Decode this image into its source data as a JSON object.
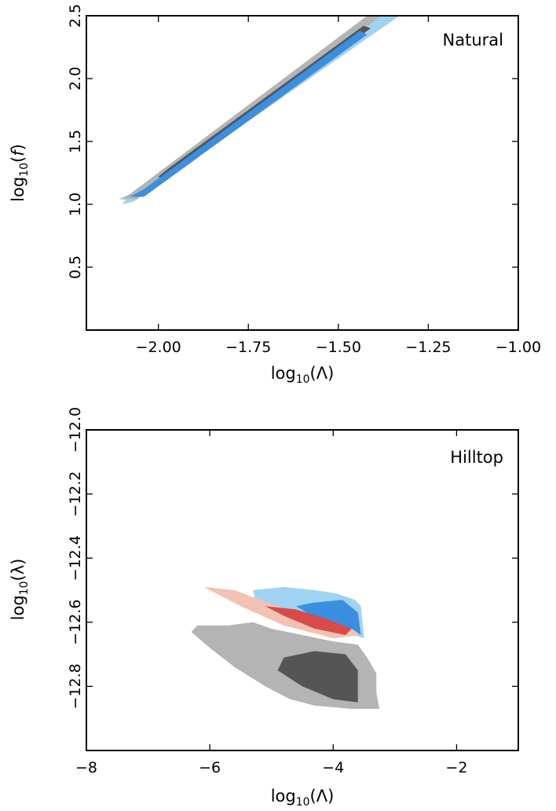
{
  "colors": {
    "gray_outer": "#b4b4b4",
    "gray_inner": "#555555",
    "blue_outer": "#9fd3f2",
    "blue_inner": "#3a8fe0",
    "red_outer": "#f2c2b2",
    "red_inner": "#d94a4a"
  },
  "chart_data": [
    {
      "type": "contour",
      "title": "Natural",
      "xlabel": "log10(Λ)",
      "ylabel": "log10(f)",
      "xlim": [
        -2.2,
        -1.0
      ],
      "ylim": [
        0.0,
        2.5
      ],
      "xticks": [
        -2.0,
        -1.75,
        -1.5,
        -1.25,
        -1.0
      ],
      "xtick_labels": [
        "−2.00",
        "−1.75",
        "−1.50",
        "−1.25",
        "−1.00"
      ],
      "yticks": [
        0.5,
        1.0,
        1.5,
        2.0,
        2.5
      ],
      "ytick_labels": [
        "0.5",
        "1.0",
        "1.5",
        "2.0",
        "2.5"
      ],
      "regions": [
        {
          "color": "blue_outer",
          "points": [
            [
              -2.1,
              1.0
            ],
            [
              -2.09,
              1.04
            ],
            [
              -1.41,
              2.5
            ],
            [
              -1.33,
              2.5
            ],
            [
              -2.07,
              1.02
            ]
          ]
        },
        {
          "color": "gray_outer",
          "points": [
            [
              -2.11,
              1.04
            ],
            [
              -2.08,
              1.08
            ],
            [
              -1.42,
              2.5
            ],
            [
              -1.38,
              2.5
            ],
            [
              -2.06,
              1.04
            ]
          ]
        },
        {
          "color": "gray_inner",
          "points": [
            [
              -2.0,
              1.22
            ],
            [
              -1.97,
              1.29
            ],
            [
              -1.43,
              2.42
            ],
            [
              -1.41,
              2.4
            ],
            [
              -1.99,
              1.2
            ]
          ]
        },
        {
          "color": "blue_inner",
          "points": [
            [
              -2.08,
              1.06
            ],
            [
              -2.04,
              1.12
            ],
            [
              -1.44,
              2.38
            ],
            [
              -1.42,
              2.35
            ],
            [
              -2.04,
              1.06
            ]
          ]
        }
      ]
    },
    {
      "type": "contour",
      "title": "Hilltop",
      "xlabel": "log10(Λ)",
      "ylabel": "log10(λ)",
      "xlim": [
        -8,
        -1
      ],
      "ylim": [
        -13.0,
        -12.0
      ],
      "xticks": [
        -8,
        -6,
        -4,
        -2
      ],
      "xtick_labels": [
        "−8",
        "−6",
        "−4",
        "−2"
      ],
      "yticks": [
        -12.8,
        -12.6,
        -12.4,
        -12.2,
        -12.0
      ],
      "ytick_labels": [
        "−12.8",
        "−12.6",
        "−12.4",
        "−12.2",
        "−12.0"
      ],
      "regions": [
        {
          "color": "gray_outer",
          "points": [
            [
              -6.3,
              -12.63
            ],
            [
              -6.2,
              -12.61
            ],
            [
              -5.7,
              -12.61
            ],
            [
              -5.3,
              -12.6
            ],
            [
              -5.0,
              -12.62
            ],
            [
              -4.5,
              -12.64
            ],
            [
              -4.0,
              -12.66
            ],
            [
              -3.6,
              -12.67
            ],
            [
              -3.45,
              -12.71
            ],
            [
              -3.3,
              -12.76
            ],
            [
              -3.3,
              -12.82
            ],
            [
              -3.25,
              -12.87
            ],
            [
              -3.7,
              -12.87
            ],
            [
              -4.3,
              -12.86
            ],
            [
              -4.7,
              -12.84
            ],
            [
              -5.1,
              -12.8
            ],
            [
              -5.6,
              -12.74
            ],
            [
              -6.0,
              -12.68
            ]
          ]
        },
        {
          "color": "gray_inner",
          "points": [
            [
              -4.8,
              -12.71
            ],
            [
              -4.3,
              -12.69
            ],
            [
              -3.8,
              -12.7
            ],
            [
              -3.6,
              -12.75
            ],
            [
              -3.6,
              -12.85
            ],
            [
              -4.0,
              -12.84
            ],
            [
              -4.5,
              -12.8
            ],
            [
              -4.9,
              -12.75
            ]
          ]
        },
        {
          "color": "blue_outer",
          "points": [
            [
              -5.3,
              -12.5
            ],
            [
              -5.25,
              -12.54
            ],
            [
              -5.1,
              -12.55
            ],
            [
              -4.6,
              -12.58
            ],
            [
              -4.0,
              -12.62
            ],
            [
              -3.5,
              -12.65
            ],
            [
              -3.55,
              -12.55
            ],
            [
              -3.65,
              -12.53
            ],
            [
              -3.95,
              -12.51
            ],
            [
              -4.3,
              -12.5
            ],
            [
              -4.8,
              -12.49
            ]
          ]
        },
        {
          "color": "blue_inner",
          "points": [
            [
              -4.6,
              -12.55
            ],
            [
              -4.0,
              -12.62
            ],
            [
              -3.55,
              -12.64
            ],
            [
              -3.6,
              -12.57
            ],
            [
              -3.85,
              -12.53
            ],
            [
              -4.35,
              -12.54
            ]
          ]
        },
        {
          "color": "red_outer",
          "points": [
            [
              -6.1,
              -12.49
            ],
            [
              -5.6,
              -12.5
            ],
            [
              -4.9,
              -12.55
            ],
            [
              -4.2,
              -12.59
            ],
            [
              -3.7,
              -12.62
            ],
            [
              -3.55,
              -12.64
            ],
            [
              -4.0,
              -12.65
            ],
            [
              -4.8,
              -12.61
            ],
            [
              -5.5,
              -12.55
            ]
          ]
        },
        {
          "color": "red_inner",
          "points": [
            [
              -5.1,
              -12.55
            ],
            [
              -4.6,
              -12.56
            ],
            [
              -4.1,
              -12.59
            ],
            [
              -3.7,
              -12.62
            ],
            [
              -3.8,
              -12.64
            ],
            [
              -4.3,
              -12.62
            ],
            [
              -4.8,
              -12.58
            ]
          ]
        }
      ]
    }
  ]
}
